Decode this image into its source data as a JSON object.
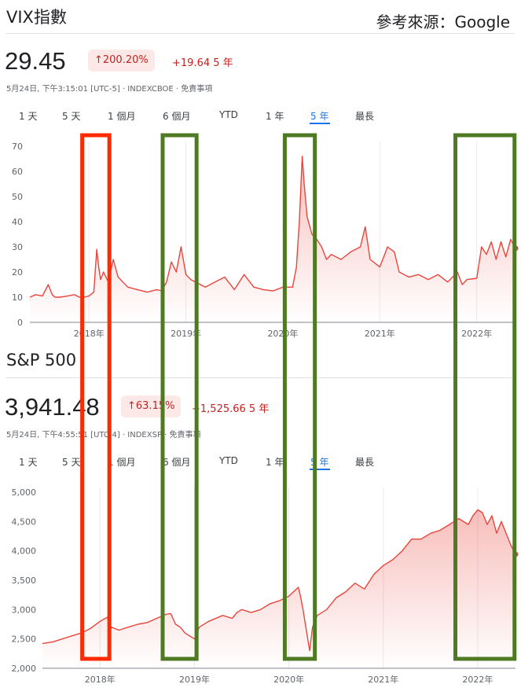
{
  "header": {
    "title": "VIX指數",
    "source": "參考來源：Google"
  },
  "vix": {
    "price": "29.45",
    "badge": "↑200.20%",
    "change": "+19.64 5 年",
    "meta": "5月24日, 下午3:15:01 [UTC-5] · INDEXCBOE · 免責事項"
  },
  "sp": {
    "title": "S&P 500",
    "price": "3,941.48",
    "badge": "↑63.15%",
    "change": "+1,525.66 5 年",
    "meta": "5月24日, 下午4:55:51 [UTC-4] · INDEXSP · 免責事項"
  },
  "tabs": [
    "1 天",
    "5 天",
    "1 個月",
    "6 個月",
    "YTD",
    "1 年",
    "5 年",
    "最長"
  ],
  "active_tab": "5 年",
  "colors": {
    "line": "#e8453c",
    "fill": "#fbe0de",
    "highlight_red": "#ff2a00",
    "highlight_green": "#4e7a23",
    "text": "#202124",
    "muted": "#5f6368",
    "accent": "#1a73e8"
  },
  "chart_data": [
    {
      "type": "area",
      "y_ticks": [
        "0",
        "10",
        "20",
        "30",
        "40",
        "50",
        "60",
        "70"
      ],
      "ylim": [
        0,
        70
      ],
      "x_ticks": [
        {
          "label": "2018年",
          "x": 2018.0
        },
        {
          "label": "2019年",
          "x": 2019.0
        },
        {
          "label": "2020年",
          "x": 2020.0
        },
        {
          "label": "2021年",
          "x": 2021.0
        },
        {
          "label": "2022年",
          "x": 2022.0
        }
      ],
      "xlim": [
        2017.39,
        2022.4
      ],
      "grid": "vertical",
      "series": [
        {
          "x": [
            2017.39,
            2017.45,
            2017.52,
            2017.58,
            2017.62,
            2017.65,
            2017.7,
            2017.78,
            2017.85,
            2017.9,
            2017.95,
            2018.0,
            2018.05,
            2018.08,
            2018.1,
            2018.12,
            2018.15,
            2018.2,
            2018.25,
            2018.3,
            2018.35,
            2018.4,
            2018.5,
            2018.6,
            2018.7,
            2018.75,
            2018.8,
            2018.85,
            2018.9,
            2018.95,
            2019.0,
            2019.05,
            2019.1,
            2019.2,
            2019.3,
            2019.4,
            2019.5,
            2019.6,
            2019.65,
            2019.7,
            2019.8,
            2019.9,
            2020.0,
            2020.1,
            2020.14,
            2020.17,
            2020.2,
            2020.22,
            2020.25,
            2020.3,
            2020.35,
            2020.4,
            2020.45,
            2020.5,
            2020.6,
            2020.7,
            2020.8,
            2020.85,
            2020.9,
            2021.0,
            2021.08,
            2021.15,
            2021.2,
            2021.3,
            2021.4,
            2021.5,
            2021.6,
            2021.7,
            2021.8,
            2021.85,
            2021.9,
            2022.0,
            2022.05,
            2022.1,
            2022.15,
            2022.2,
            2022.25,
            2022.3,
            2022.35,
            2022.4
          ],
          "y": [
            10.0,
            11.0,
            10.5,
            15.0,
            11.0,
            10.0,
            10.0,
            10.5,
            11.0,
            10.0,
            10.0,
            10.5,
            12.0,
            29.0,
            22.0,
            17.0,
            20.0,
            16.0,
            25.0,
            18.0,
            16.0,
            14.0,
            13.0,
            12.0,
            13.0,
            12.5,
            16.0,
            24.0,
            20.0,
            30.0,
            19.0,
            17.0,
            16.0,
            14.0,
            16.0,
            18.0,
            13.0,
            19.0,
            16.5,
            14.0,
            13.0,
            12.5,
            14.0,
            14.0,
            22.0,
            40.0,
            66.0,
            55.0,
            42.0,
            35.0,
            33.0,
            30.0,
            25.0,
            27.0,
            25.0,
            28.0,
            30.0,
            38.0,
            25.0,
            22.0,
            30.0,
            28.0,
            20.0,
            18.0,
            19.0,
            17.0,
            19.0,
            16.0,
            20.0,
            15.0,
            17.0,
            17.5,
            30.0,
            27.0,
            32.0,
            25.0,
            32.0,
            26.0,
            33.0,
            29.45
          ]
        }
      ]
    },
    {
      "type": "area",
      "y_ticks": [
        "2,000",
        "2,500",
        "3,000",
        "3,500",
        "4,000",
        "4,500",
        "5,000"
      ],
      "ylim": [
        2000,
        5000
      ],
      "x_ticks": [
        {
          "label": "2018年",
          "x": 2018.0
        },
        {
          "label": "2019年",
          "x": 2019.0
        },
        {
          "label": "2020年",
          "x": 2020.0
        },
        {
          "label": "2021年",
          "x": 2021.0
        },
        {
          "label": "2022年",
          "x": 2022.0
        }
      ],
      "xlim": [
        2017.39,
        2022.4
      ],
      "grid": "vertical",
      "series": [
        {
          "x": [
            2017.39,
            2017.5,
            2017.6,
            2017.7,
            2017.8,
            2017.9,
            2018.0,
            2018.08,
            2018.1,
            2018.12,
            2018.2,
            2018.3,
            2018.4,
            2018.5,
            2018.6,
            2018.7,
            2018.75,
            2018.8,
            2018.85,
            2018.9,
            2018.95,
            2019.0,
            2019.05,
            2019.15,
            2019.3,
            2019.4,
            2019.45,
            2019.5,
            2019.6,
            2019.7,
            2019.8,
            2019.9,
            2020.0,
            2020.1,
            2020.12,
            2020.15,
            2020.2,
            2020.22,
            2020.25,
            2020.3,
            2020.4,
            2020.5,
            2020.6,
            2020.7,
            2020.8,
            2020.9,
            2021.0,
            2021.1,
            2021.2,
            2021.3,
            2021.4,
            2021.5,
            2021.6,
            2021.7,
            2021.75,
            2021.8,
            2021.9,
            2021.95,
            2022.0,
            2022.05,
            2022.1,
            2022.15,
            2022.2,
            2022.25,
            2022.3,
            2022.35,
            2022.4
          ],
          "y": [
            2420,
            2450,
            2500,
            2550,
            2600,
            2680,
            2800,
            2870,
            2650,
            2700,
            2650,
            2700,
            2750,
            2780,
            2850,
            2920,
            2930,
            2750,
            2700,
            2600,
            2550,
            2500,
            2700,
            2800,
            2900,
            2850,
            2950,
            3000,
            2950,
            3000,
            3100,
            3150,
            3230,
            3380,
            3250,
            3000,
            2500,
            2300,
            2700,
            2900,
            3000,
            3200,
            3300,
            3450,
            3350,
            3600,
            3750,
            3850,
            4000,
            4200,
            4200,
            4300,
            4350,
            4450,
            4500,
            4550,
            4450,
            4600,
            4700,
            4650,
            4450,
            4600,
            4300,
            4500,
            4300,
            4100,
            3941.48
          ]
        }
      ]
    }
  ],
  "highlights": [
    {
      "color": "red",
      "x_range": [
        2017.93,
        2018.21
      ]
    },
    {
      "color": "green",
      "x_range": [
        2018.76,
        2019.11
      ]
    },
    {
      "color": "green",
      "x_range": [
        2020.02,
        2020.33
      ]
    },
    {
      "color": "green",
      "x_range": [
        2021.78,
        2022.39
      ]
    }
  ]
}
